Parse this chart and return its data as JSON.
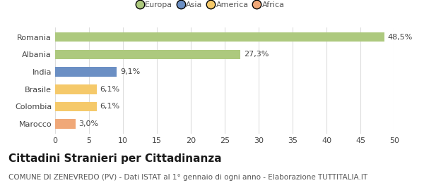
{
  "categories": [
    "Romania",
    "Albania",
    "India",
    "Brasile",
    "Colombia",
    "Marocco"
  ],
  "values": [
    48.5,
    27.3,
    9.1,
    6.1,
    6.1,
    3.0
  ],
  "labels": [
    "48,5%",
    "27,3%",
    "9,1%",
    "6,1%",
    "6,1%",
    "3,0%"
  ],
  "colors": [
    "#adc97e",
    "#adc97e",
    "#6b8fc4",
    "#f5c96a",
    "#f5c96a",
    "#f0a878"
  ],
  "legend_entries": [
    {
      "label": "Europa",
      "color": "#adc97e"
    },
    {
      "label": "Asia",
      "color": "#6b8fc4"
    },
    {
      "label": "America",
      "color": "#f5c96a"
    },
    {
      "label": "Africa",
      "color": "#f0a878"
    }
  ],
  "xlim": [
    0,
    50
  ],
  "xticks": [
    0,
    5,
    10,
    15,
    20,
    25,
    30,
    35,
    40,
    45,
    50
  ],
  "title": "Cittadini Stranieri per Cittadinanza",
  "subtitle": "COMUNE DI ZENEVREDO (PV) - Dati ISTAT al 1° gennaio di ogni anno - Elaborazione TUTTITALIA.IT",
  "background_color": "#ffffff",
  "grid_color": "#dddddd",
  "title_fontsize": 11,
  "subtitle_fontsize": 7.5,
  "label_fontsize": 8,
  "tick_fontsize": 8,
  "bar_height": 0.55
}
